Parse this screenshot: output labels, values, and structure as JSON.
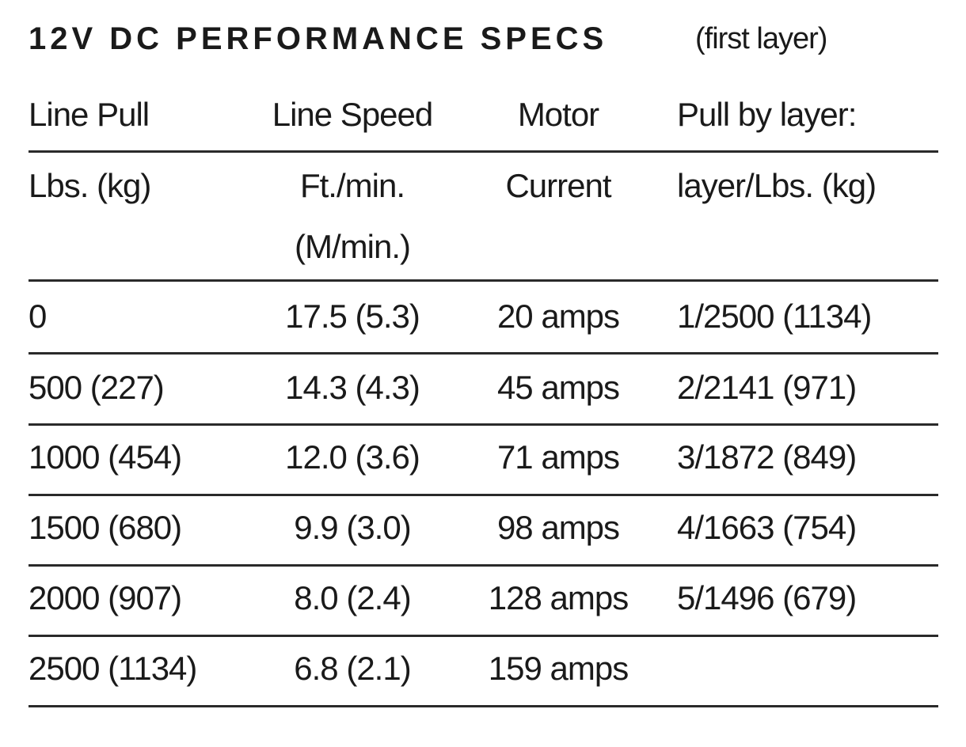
{
  "title": "12V DC PERFORMANCE SPECS",
  "subtitle": "(first layer)",
  "table": {
    "header": [
      [
        "Line Pull",
        "Line Speed",
        "Motor",
        "Pull by layer:"
      ],
      [
        "Lbs. (kg)",
        [
          "Ft./min.",
          "(M/min.)"
        ],
        "Current",
        "layer/Lbs. (kg)"
      ]
    ],
    "rows": [
      [
        "0",
        "17.5 (5.3)",
        "20 amps",
        "1/2500 (1134)"
      ],
      [
        "500 (227)",
        "14.3 (4.3)",
        "45 amps",
        "2/2141 (971)"
      ],
      [
        "1000 (454)",
        "12.0 (3.6)",
        "71 amps",
        "3/1872 (849)"
      ],
      [
        "1500 (680)",
        "9.9 (3.0)",
        "98 amps",
        "4/1663 (754)"
      ],
      [
        "2000 (907)",
        "8.0 (2.4)",
        "128 amps",
        "5/1496 (679)"
      ],
      [
        "2500 (1134)",
        "6.8 (2.1)",
        "159 amps"
      ]
    ]
  }
}
